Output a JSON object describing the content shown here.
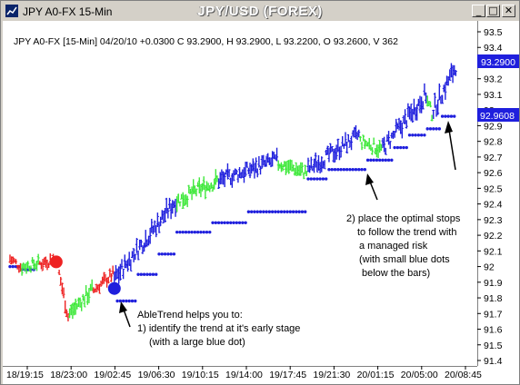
{
  "window": {
    "title": "JPY A0-FX 15-Min",
    "chart_title": "JPY/USD (FOREX)",
    "controls": {
      "minimize": "_",
      "maximize": "□",
      "close": "✕"
    }
  },
  "chart_data": {
    "type": "bar",
    "subtype": "ohlc-price-bars",
    "title": "JPY/USD (FOREX)",
    "info_line": "JPY A0-FX [15-Min] 04/20/10 +0.0300 C 93.2900, H 93.2900, L 93.2200, O 93.2600, V 362",
    "ylim": [
      91.4,
      93.5
    ],
    "y_ticks": [
      "93.5",
      "93.4",
      "93.3",
      "93.2",
      "93.1",
      "93",
      "92.9",
      "92.8",
      "92.7",
      "92.6",
      "92.5",
      "92.4",
      "92.3",
      "92.2",
      "92.1",
      "92",
      "91.9",
      "91.8",
      "91.7",
      "91.6",
      "91.5",
      "91.4"
    ],
    "x_ticks": [
      "18/19:15",
      "18/23:00",
      "19/02:45",
      "19/06:30",
      "19/10:15",
      "19/14:00",
      "19/17:45",
      "19/21:30",
      "20/01:15",
      "20/05:00",
      "20/08:45"
    ],
    "price_labels": [
      "93.2900",
      "92.9608"
    ],
    "colors": {
      "up": "#1f1fdd",
      "down": "#3ee83a",
      "neutral": "#ee2222",
      "stops": "#1f1fdd"
    },
    "key_points": [
      {
        "x": 31.0,
        "y": 92.03,
        "color": "#ee2222",
        "note": "sell signal (large red dot)"
      },
      {
        "x": 70.0,
        "y": 91.86,
        "color": "#1f1fdd",
        "note": "buy signal (large blue dot)"
      }
    ],
    "segments": [
      {
        "from": 0,
        "to": 8,
        "start": 92.05,
        "end": 92.0,
        "color": "#ee2222",
        "spread": 0.06
      },
      {
        "from": 8,
        "to": 20,
        "start": 92.0,
        "end": 92.02,
        "color": "#3ee83a",
        "spread": 0.06
      },
      {
        "from": 20,
        "to": 32,
        "start": 92.02,
        "end": 92.05,
        "color": "#ee2222",
        "spread": 0.06
      },
      {
        "from": 32,
        "to": 40,
        "start": 92.0,
        "end": 91.68,
        "color": "#ee2222",
        "spread": 0.07
      },
      {
        "from": 40,
        "to": 56,
        "start": 91.7,
        "end": 91.85,
        "color": "#3ee83a",
        "spread": 0.08
      },
      {
        "from": 56,
        "to": 70,
        "start": 91.85,
        "end": 91.95,
        "color": "#ee2222",
        "spread": 0.06
      },
      {
        "from": 70,
        "to": 112,
        "start": 91.92,
        "end": 92.42,
        "color": "#1f1fdd",
        "spread": 0.09
      },
      {
        "from": 112,
        "to": 140,
        "start": 92.42,
        "end": 92.55,
        "color": "#3ee83a",
        "spread": 0.08
      },
      {
        "from": 140,
        "to": 180,
        "start": 92.55,
        "end": 92.68,
        "color": "#1f1fdd",
        "spread": 0.08
      },
      {
        "from": 180,
        "to": 200,
        "start": 92.66,
        "end": 92.6,
        "color": "#3ee83a",
        "spread": 0.07
      },
      {
        "from": 200,
        "to": 235,
        "start": 92.62,
        "end": 92.84,
        "color": "#1f1fdd",
        "spread": 0.08
      },
      {
        "from": 235,
        "to": 250,
        "start": 92.8,
        "end": 92.75,
        "color": "#3ee83a",
        "spread": 0.07
      },
      {
        "from": 250,
        "to": 280,
        "start": 92.75,
        "end": 93.1,
        "color": "#1f1fdd",
        "spread": 0.09
      },
      {
        "from": 280,
        "to": 284,
        "start": 93.05,
        "end": 92.98,
        "color": "#3ee83a",
        "spread": 0.07
      },
      {
        "from": 284,
        "to": 300,
        "start": 93.0,
        "end": 93.28,
        "color": "#1f1fdd",
        "spread": 0.09
      }
    ],
    "stop_steps": [
      {
        "from": 0,
        "to": 8,
        "y": 92.0
      },
      {
        "from": 8,
        "to": 18,
        "y": 91.98
      },
      {
        "from": 72,
        "to": 86,
        "y": 91.78
      },
      {
        "from": 86,
        "to": 100,
        "y": 91.95
      },
      {
        "from": 100,
        "to": 112,
        "y": 92.08
      },
      {
        "from": 112,
        "to": 136,
        "y": 92.22
      },
      {
        "from": 136,
        "to": 160,
        "y": 92.28
      },
      {
        "from": 160,
        "to": 200,
        "y": 92.35
      },
      {
        "from": 200,
        "to": 214,
        "y": 92.56
      },
      {
        "from": 214,
        "to": 240,
        "y": 92.62
      },
      {
        "from": 240,
        "to": 258,
        "y": 92.68
      },
      {
        "from": 258,
        "to": 268,
        "y": 92.76
      },
      {
        "from": 268,
        "to": 280,
        "y": 92.84
      },
      {
        "from": 280,
        "to": 290,
        "y": 92.88
      },
      {
        "from": 290,
        "to": 300,
        "y": 92.96
      }
    ]
  },
  "annotations": {
    "stops_lines": [
      "2) place the optimal stops",
      "to follow the trend with",
      "a managed risk",
      "(with small blue dots",
      "below the bars)"
    ],
    "entry_lines": [
      "AbleTrend helps you to:",
      "1) identify the trend at it's early stage",
      "(with a large blue dot)"
    ]
  }
}
